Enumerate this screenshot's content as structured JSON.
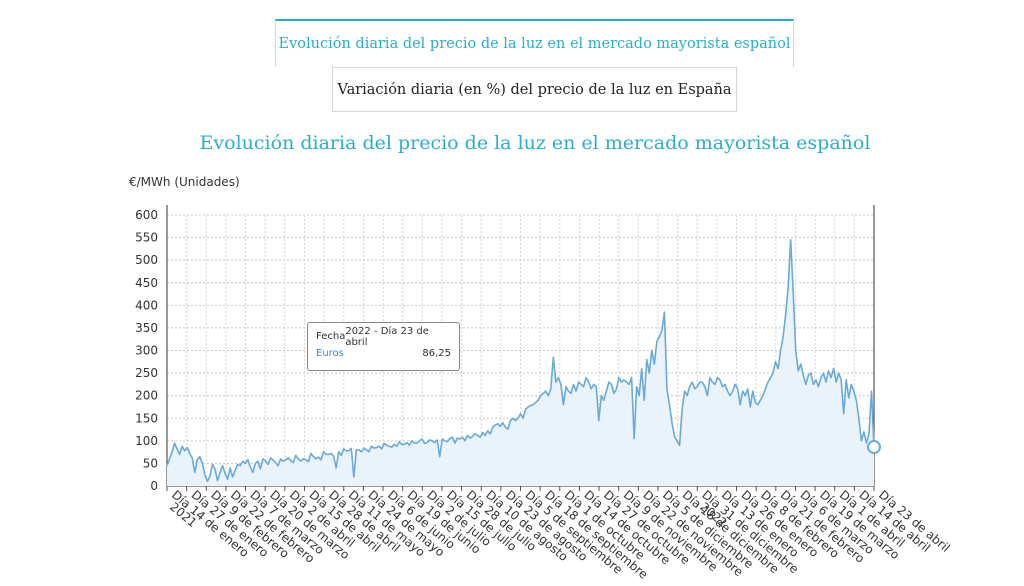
{
  "tabs": [
    {
      "label": "Evolución diaria del precio de la luz en el mercado mayorista español",
      "active": true
    },
    {
      "label": "Variación diaria (en %) del precio de la luz en España",
      "active": false
    }
  ],
  "colors": {
    "accent": "#2aaec9",
    "series": "#6aaad8",
    "area": "#eaf2fa"
  },
  "tooltip": {
    "fecha_label": "Fecha",
    "fecha_value": "2022 - Día 23 de abril",
    "series_label": "Euros",
    "series_value": "86,25"
  },
  "chart_data": {
    "type": "area",
    "title": "Evolución diaria del precio de la luz en el mercado mayorista español",
    "ylabel": "€/MWh (Unidades)",
    "ylim": [
      0,
      600
    ],
    "yticks": [
      0,
      50,
      100,
      150,
      200,
      250,
      300,
      350,
      400,
      450,
      500,
      550,
      600
    ],
    "grid": true,
    "year_labels": [
      "2021",
      "2022"
    ],
    "x_tick_labels": [
      "Día 14 de enero",
      "Día 27 de enero",
      "Día 9 de febrero",
      "Día 22 de febrero",
      "Día 7 de marzo",
      "Día 20 de marzo",
      "Día 2 de abril",
      "Día 15 de abril",
      "Día 28 de abril",
      "Día 11 de mayo",
      "Día 24 de mayo",
      "Día 6 de junio",
      "Día 19 de junio",
      "Día 2 de julio",
      "Día 15 de julio",
      "Día 28 de julio",
      "Día 10 de agosto",
      "Día 23 de agosto",
      "Día 5 de septiembre",
      "Día 18 de septiembre",
      "Día 1 de octubre",
      "Día 14 de octubre",
      "Día 27 de octubre",
      "Día 9 de noviembre",
      "Día 22 de noviembre",
      "Día 5 de diciembre",
      "Día 18 de diciembre",
      "Día 31 de diciembre",
      "Día 13 de enero",
      "Día 26 de enero",
      "Día 8 de febrero",
      "Día 21 de febrero",
      "Día 6 de marzo",
      "Día 19 de marzo",
      "Día 1 de abril",
      "Día 14 de abril",
      "Día 23 de abril"
    ],
    "series": [
      {
        "name": "Euros",
        "values": [
          45,
          60,
          75,
          95,
          82,
          70,
          88,
          78,
          85,
          72,
          62,
          30,
          58,
          65,
          50,
          25,
          10,
          22,
          48,
          38,
          12,
          30,
          45,
          28,
          15,
          40,
          20,
          35,
          48,
          45,
          55,
          50,
          58,
          42,
          30,
          50,
          55,
          38,
          60,
          55,
          48,
          62,
          58,
          52,
          45,
          60,
          55,
          58,
          62,
          56,
          52,
          68,
          60,
          55,
          60,
          58,
          54,
          72,
          65,
          60,
          64,
          58,
          76,
          70,
          70,
          72,
          66,
          40,
          76,
          68,
          82,
          78,
          78,
          83,
          20,
          80,
          80,
          76,
          84,
          80,
          76,
          88,
          84,
          85,
          88,
          82,
          94,
          90,
          88,
          86,
          92,
          88,
          98,
          92,
          92,
          96,
          90,
          100,
          95,
          95,
          100,
          104,
          94,
          96,
          102,
          100,
          96,
          102,
          65,
          104,
          100,
          98,
          105,
          108,
          95,
          106,
          104,
          108,
          100,
          112,
          106,
          110,
          116,
          112,
          108,
          118,
          112,
          122,
          115,
          130,
          135,
          138,
          132,
          140,
          130,
          126,
          145,
          150,
          145,
          150,
          160,
          150,
          170,
          175,
          178,
          180,
          185,
          190,
          200,
          205,
          210,
          200,
          215,
          285,
          230,
          240,
          225,
          180,
          220,
          210,
          205,
          225,
          210,
          230,
          225,
          220,
          240,
          230,
          215,
          225,
          220,
          145,
          200,
          190,
          210,
          230,
          225,
          205,
          215,
          240,
          230,
          235,
          230,
          225,
          240,
          105,
          220,
          200,
          260,
          190,
          280,
          250,
          300,
          270,
          320,
          330,
          345,
          385,
          215,
          180,
          140,
          110,
          100,
          90,
          170,
          210,
          200,
          220,
          230,
          215,
          220,
          230,
          230,
          220,
          200,
          240,
          230,
          225,
          240,
          235,
          220,
          225,
          210,
          200,
          210,
          225,
          215,
          180,
          210,
          200,
          215,
          175,
          210,
          185,
          180,
          190,
          200,
          215,
          230,
          240,
          250,
          275,
          260,
          300,
          330,
          380,
          440,
          545,
          430,
          300,
          255,
          270,
          245,
          225,
          245,
          250,
          225,
          235,
          220,
          240,
          250,
          230,
          255,
          240,
          260,
          230,
          250,
          235,
          160,
          235,
          195,
          225,
          210,
          190,
          150,
          100,
          120,
          95,
          115,
          210,
          86
        ]
      }
    ],
    "selected_point": {
      "label": "Día 23 de abril",
      "value": 86.25
    }
  }
}
